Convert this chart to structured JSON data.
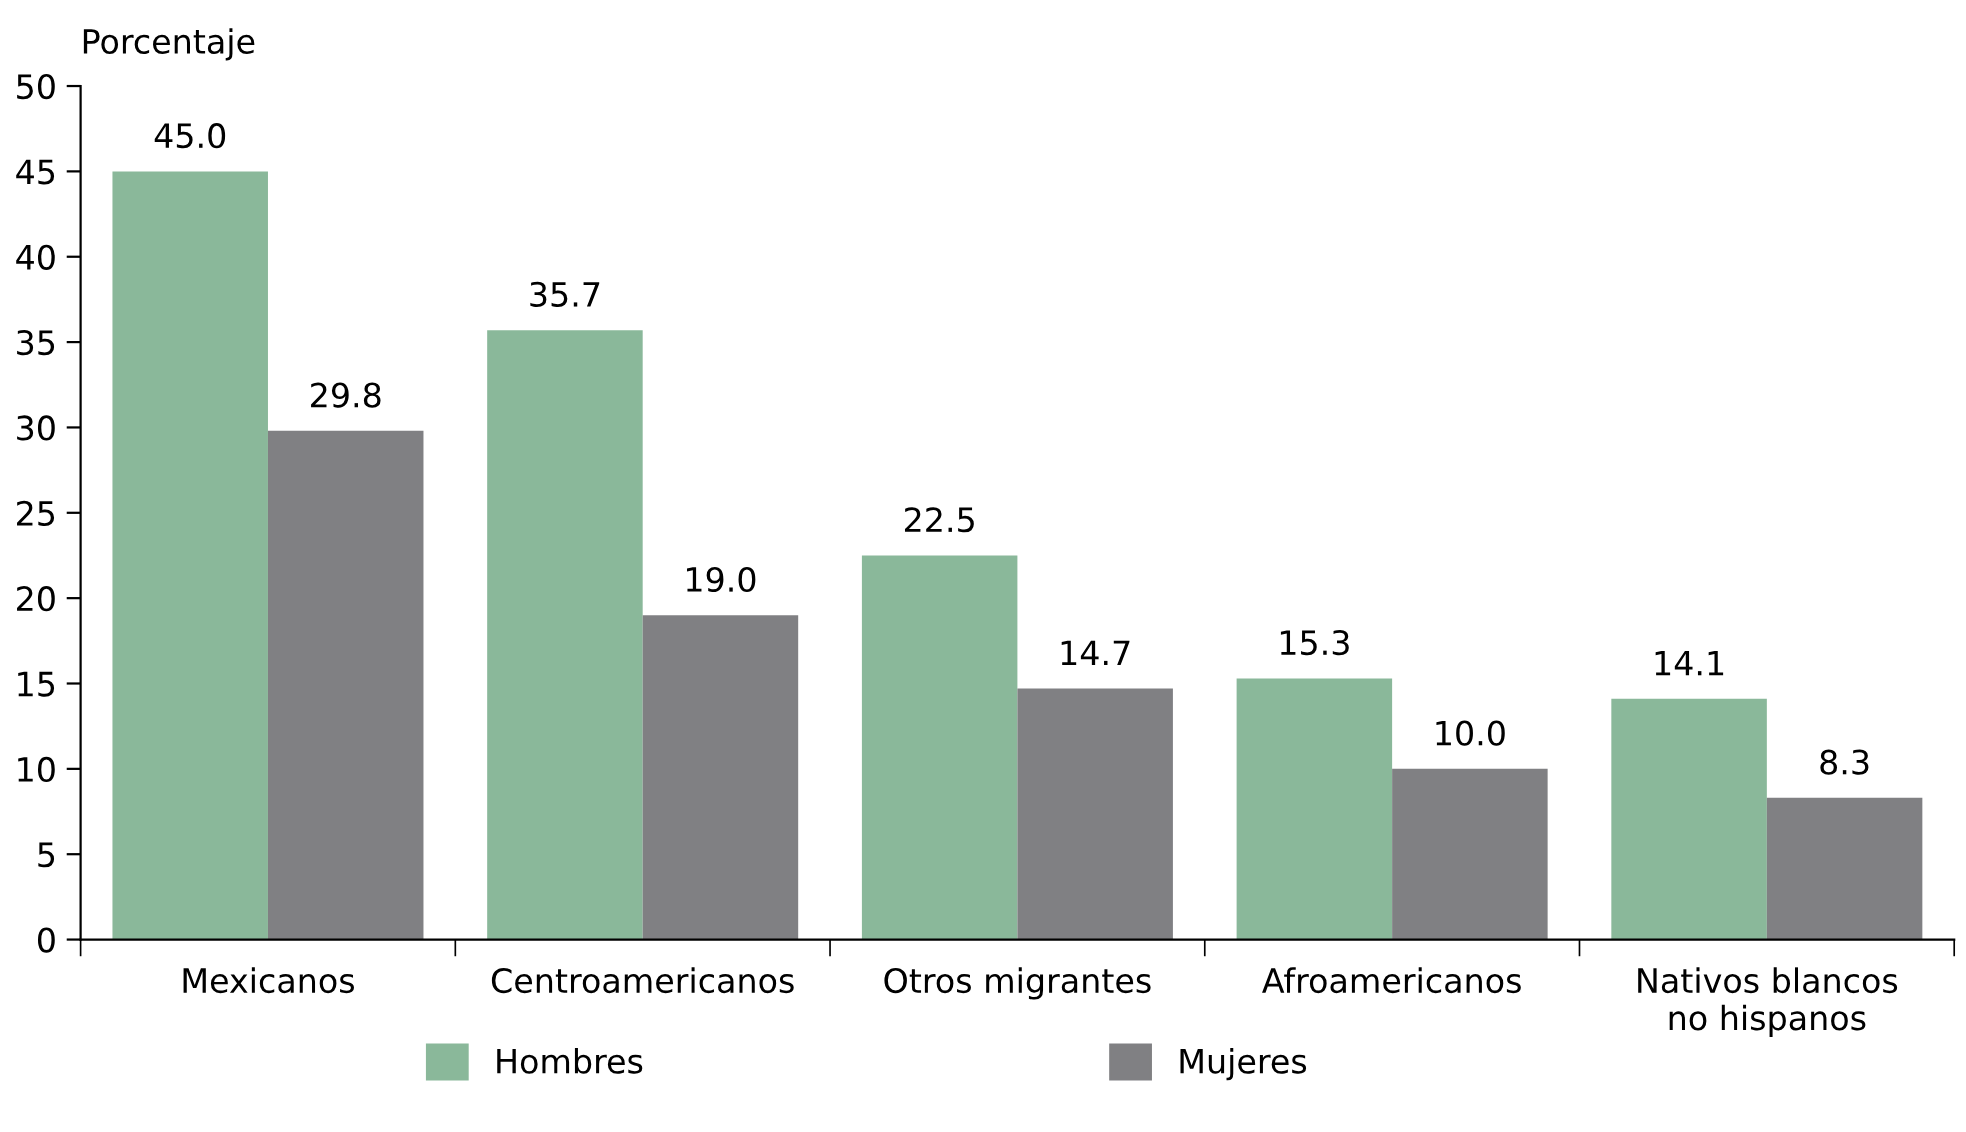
{
  "chart_data": {
    "type": "bar",
    "ylabel": "Porcentaje",
    "categories": [
      "Mexicanos",
      "Centroamericanos",
      "Otros migrantes",
      "Afroamericanos",
      "Nativos blancos\nno hispanos"
    ],
    "series": [
      {
        "name": "Hombres",
        "color": "#8ab89a",
        "values": [
          45.0,
          35.7,
          22.5,
          15.3,
          14.1
        ],
        "value_labels": [
          "45.0",
          "35.7",
          "22.5",
          "15.3",
          "14.1"
        ]
      },
      {
        "name": "Mujeres",
        "color": "#808083",
        "values": [
          29.8,
          19.0,
          14.7,
          10.0,
          8.3
        ],
        "value_labels": [
          "29.8",
          "19.0",
          "14.7",
          "10.0",
          "8.3"
        ]
      }
    ],
    "ylim": [
      0,
      50
    ],
    "yticks": [
      0,
      5,
      10,
      15,
      20,
      25,
      30,
      35,
      40,
      45,
      50
    ],
    "legend": "bottom",
    "grid": false
  }
}
